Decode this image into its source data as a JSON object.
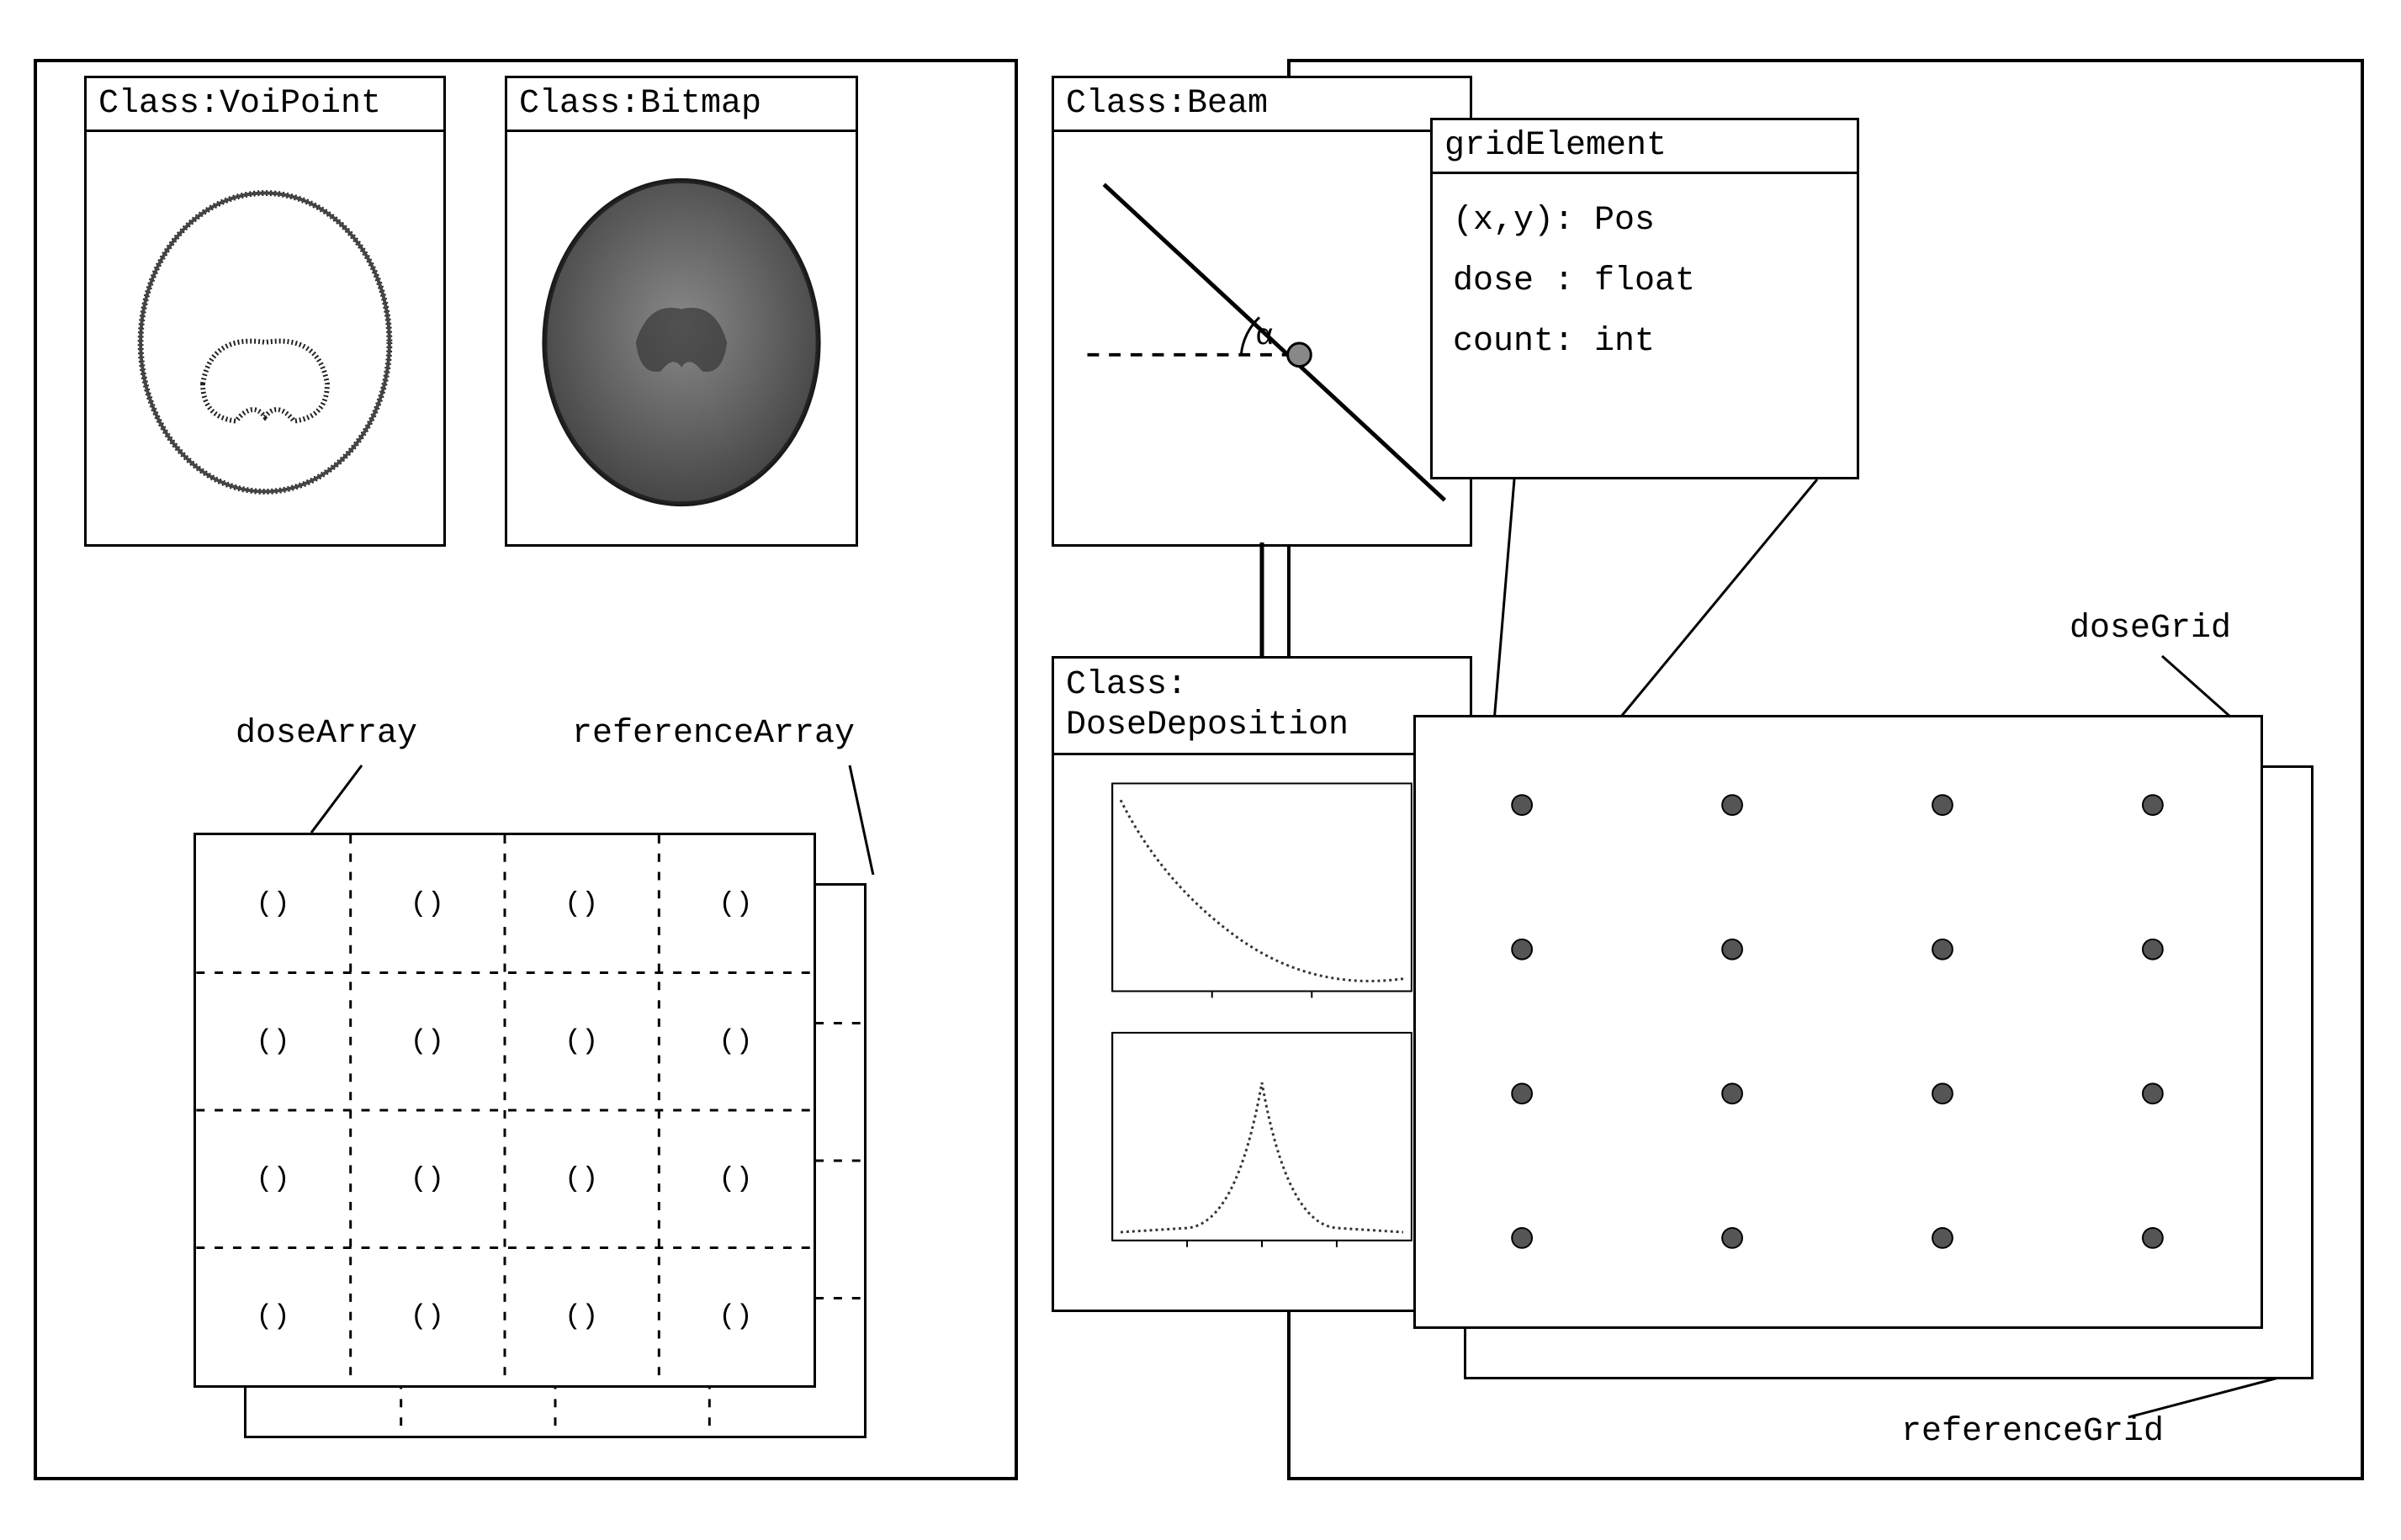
{
  "font": {
    "family": "Courier New, monospace",
    "label_size": 40
  },
  "colors": {
    "line": "#000000",
    "bg": "#ffffff",
    "scan_fill": "#6b6b6b",
    "scan_outline": "#2a2a2a",
    "grid_dot": "#555555"
  },
  "classes": {
    "voipoint": {
      "title": "Class:VoiPoint"
    },
    "bitmap": {
      "title": "Class:Bitmap"
    },
    "beam": {
      "title": "Class:Beam",
      "angle_symbol": "α"
    },
    "dose_deposition": {
      "title_line1": "Class:",
      "title_line2": "DoseDeposition"
    },
    "grid_element": {
      "title": "gridElement",
      "fields": [
        "(x,y): Pos",
        "dose : float",
        "count: int"
      ]
    }
  },
  "labels": {
    "doseArray": "doseArray",
    "referenceArray": "referenceArray",
    "doseGrid": "doseGrid",
    "referenceGrid": "referenceGrid"
  },
  "dose_array": {
    "rows": 4,
    "cols": 4,
    "cell_marker": "()",
    "dash": "6,10"
  },
  "dose_grid": {
    "rows": 4,
    "cols": 4,
    "dot_radius": 10
  },
  "dose_deposition_charts": {
    "chart1": {
      "type": "decay-curve"
    },
    "chart2": {
      "type": "gaussian"
    }
  },
  "connectors": {
    "beam_to_dd": true,
    "ge_to_grid_callout": true
  }
}
